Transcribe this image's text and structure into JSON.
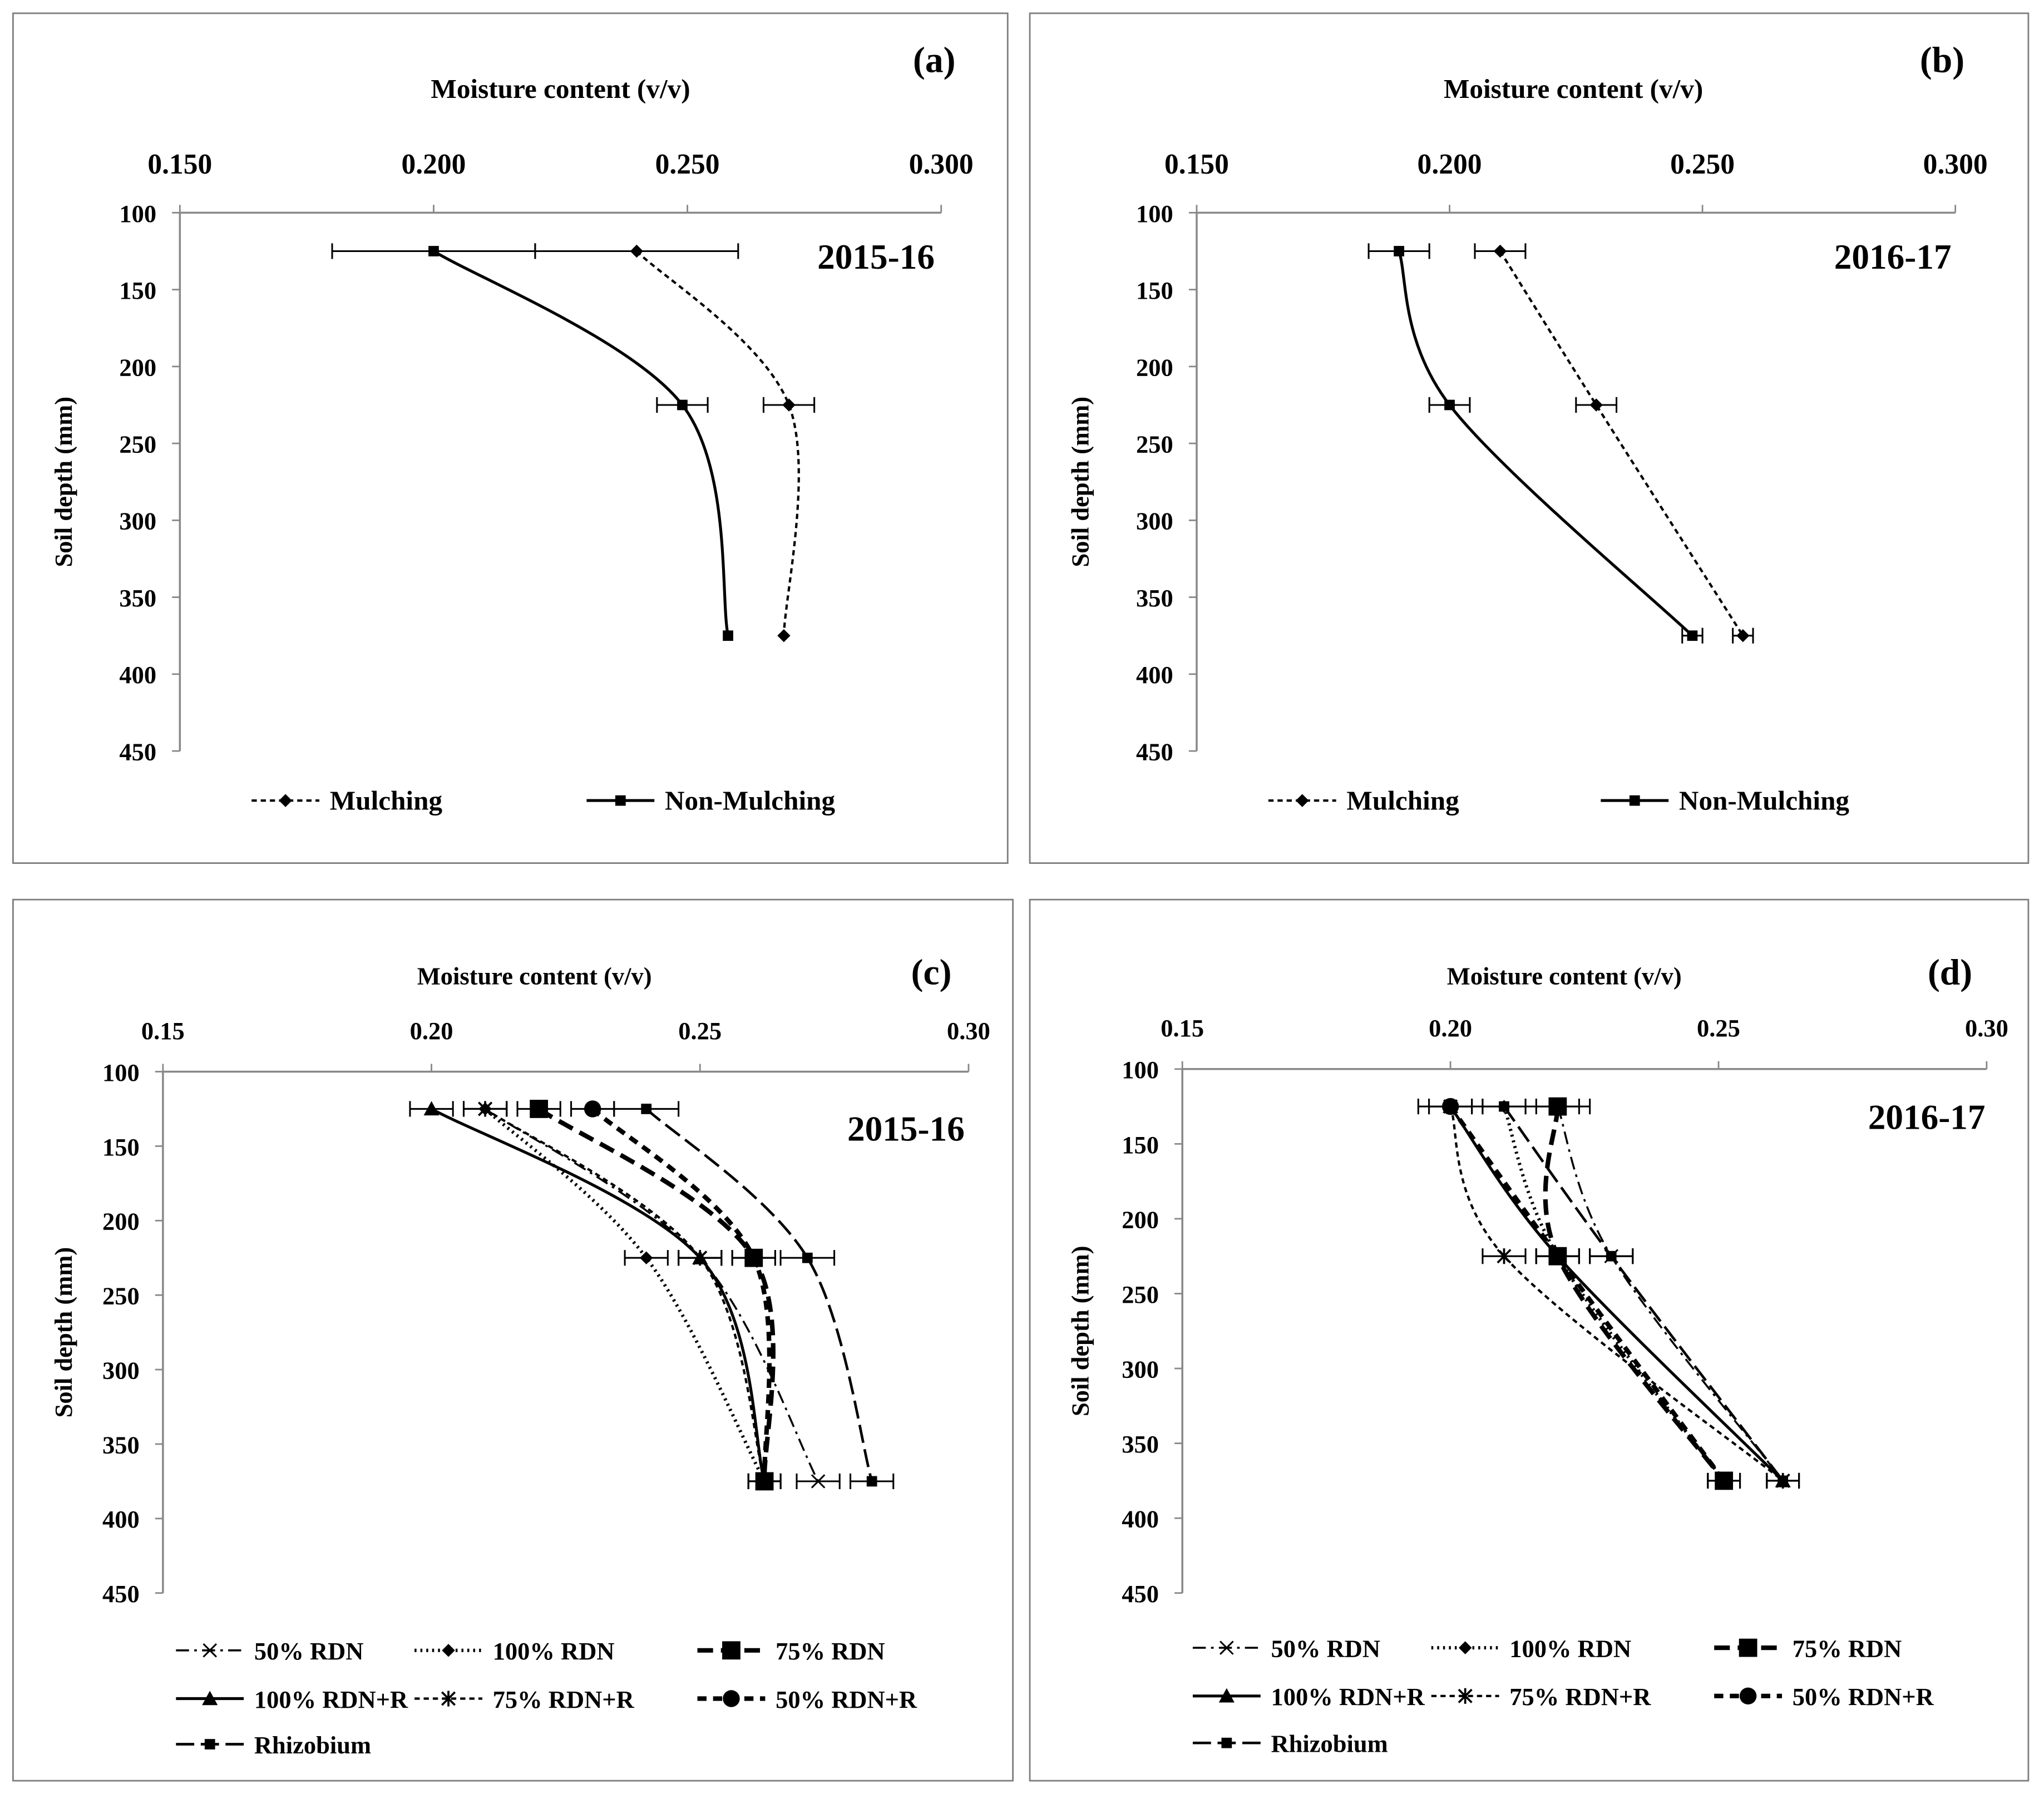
{
  "chart_data": [
    {
      "type": "line",
      "panel_label": "(a)",
      "year": "2015-16",
      "xlabel": "Moisture content (v/v)",
      "ylabel": "Soil depth (mm)",
      "xlim": [
        0.15,
        0.3
      ],
      "ylim": [
        100,
        450
      ],
      "x_ticks": [
        "0.150",
        "0.200",
        "0.250",
        "0.300"
      ],
      "y_ticks": [
        "100",
        "150",
        "200",
        "250",
        "300",
        "350",
        "400",
        "450"
      ],
      "depth": [
        125,
        225,
        375
      ],
      "series": [
        {
          "name": "Mulching",
          "marker": "diamond",
          "style": "short-dash",
          "values": [
            0.24,
            0.27,
            0.269
          ],
          "errors": [
            0.02,
            0.005,
            0
          ]
        },
        {
          "name": "Non-Mulching",
          "marker": "square",
          "style": "solid",
          "values": [
            0.2,
            0.249,
            0.258
          ],
          "errors": [
            0.02,
            0.005,
            0
          ]
        }
      ]
    },
    {
      "type": "line",
      "panel_label": "(b)",
      "year": "2016-17",
      "xlabel": "Moisture content (v/v)",
      "ylabel": "Soil depth (mm)",
      "xlim": [
        0.15,
        0.3
      ],
      "ylim": [
        100,
        450
      ],
      "x_ticks": [
        "0.150",
        "0.200",
        "0.250",
        "0.300"
      ],
      "y_ticks": [
        "100",
        "150",
        "200",
        "250",
        "300",
        "350",
        "400",
        "450"
      ],
      "depth": [
        125,
        225,
        375
      ],
      "series": [
        {
          "name": "Mulching",
          "marker": "diamond",
          "style": "short-dash",
          "values": [
            0.21,
            0.229,
            0.258
          ],
          "errors": [
            0.005,
            0.004,
            0.002
          ]
        },
        {
          "name": "Non-Mulching",
          "marker": "square",
          "style": "solid",
          "values": [
            0.19,
            0.2,
            0.248
          ],
          "errors": [
            0.006,
            0.004,
            0.002
          ]
        }
      ]
    },
    {
      "type": "line",
      "panel_label": "(c)",
      "year": "2015-16",
      "xlabel": "Moisture content (v/v)",
      "ylabel": "Soil depth (mm)",
      "xlim": [
        0.15,
        0.3
      ],
      "ylim": [
        100,
        450
      ],
      "x_ticks": [
        "0.15",
        "0.20",
        "0.25",
        "0.30"
      ],
      "y_ticks": [
        "100",
        "150",
        "200",
        "250",
        "300",
        "350",
        "400",
        "450"
      ],
      "depth": [
        125,
        225,
        375
      ],
      "series": [
        {
          "name": "50% RDN",
          "marker": "x",
          "style": "dash-dot",
          "values": [
            0.21,
            0.25,
            0.272
          ],
          "errors": [
            0.004,
            0.004,
            0.004
          ]
        },
        {
          "name": "100% RDN",
          "marker": "diamond",
          "style": "dotted",
          "values": [
            0.21,
            0.24,
            0.262
          ],
          "errors": [
            0.004,
            0.004,
            0.003
          ]
        },
        {
          "name": "75% RDN",
          "marker": "big-square",
          "style": "heavy-long-dash",
          "values": [
            0.22,
            0.26,
            0.262
          ],
          "errors": [
            0.004,
            0.004,
            0.003
          ]
        },
        {
          "name": "100% RDN+R",
          "marker": "triangle",
          "style": "solid",
          "values": [
            0.2,
            0.25,
            0.262
          ],
          "errors": [
            0.004,
            0.004,
            0.003
          ]
        },
        {
          "name": "75% RDN+R",
          "marker": "asterisk",
          "style": "short-dash",
          "values": [
            0.21,
            0.25,
            0.262
          ],
          "errors": [
            0.004,
            0.004,
            0.003
          ]
        },
        {
          "name": "50% RDN+R",
          "marker": "circle",
          "style": "heavy-dash",
          "values": [
            0.23,
            0.26,
            0.262
          ],
          "errors": [
            0.004,
            0.004,
            0.003
          ]
        },
        {
          "name": "Rhizobium",
          "marker": "square",
          "style": "long-dash",
          "values": [
            0.24,
            0.27,
            0.282
          ],
          "errors": [
            0.006,
            0.005,
            0.004
          ]
        }
      ]
    },
    {
      "type": "line",
      "panel_label": "(d)",
      "year": "2016-17",
      "xlabel": "Moisture content (v/v)",
      "ylabel": "Soil depth (mm)",
      "xlim": [
        0.15,
        0.3
      ],
      "ylim": [
        100,
        450
      ],
      "x_ticks": [
        "0.15",
        "0.20",
        "0.25",
        "0.30"
      ],
      "y_ticks": [
        "100",
        "150",
        "200",
        "250",
        "300",
        "350",
        "400",
        "450"
      ],
      "depth": [
        125,
        225,
        375
      ],
      "series": [
        {
          "name": "50% RDN",
          "marker": "x",
          "style": "dash-dot",
          "values": [
            0.22,
            0.23,
            0.262
          ],
          "errors": [
            0.004,
            0.004,
            0.003
          ]
        },
        {
          "name": "100% RDN",
          "marker": "diamond",
          "style": "dotted",
          "values": [
            0.21,
            0.22,
            0.251
          ],
          "errors": [
            0.004,
            0.004,
            0.003
          ]
        },
        {
          "name": "75% RDN",
          "marker": "big-square",
          "style": "heavy-long-dash",
          "values": [
            0.22,
            0.22,
            0.251
          ],
          "errors": [
            0.006,
            0.004,
            0.003
          ]
        },
        {
          "name": "100% RDN+R",
          "marker": "triangle",
          "style": "solid",
          "values": [
            0.2,
            0.22,
            0.262
          ],
          "errors": [
            0.004,
            0.004,
            0.003
          ]
        },
        {
          "name": "75% RDN+R",
          "marker": "asterisk",
          "style": "short-dash",
          "values": [
            0.2,
            0.21,
            0.262
          ],
          "errors": [
            0.004,
            0.004,
            0.003
          ]
        },
        {
          "name": "50% RDN+R",
          "marker": "circle",
          "style": "heavy-dash",
          "values": [
            0.2,
            0.22,
            0.251
          ],
          "errors": [
            0.006,
            0.004,
            0.003
          ]
        },
        {
          "name": "Rhizobium",
          "marker": "square",
          "style": "long-dash",
          "values": [
            0.21,
            0.23,
            0.262
          ],
          "errors": [
            0.004,
            0.004,
            0.003
          ]
        }
      ]
    }
  ]
}
